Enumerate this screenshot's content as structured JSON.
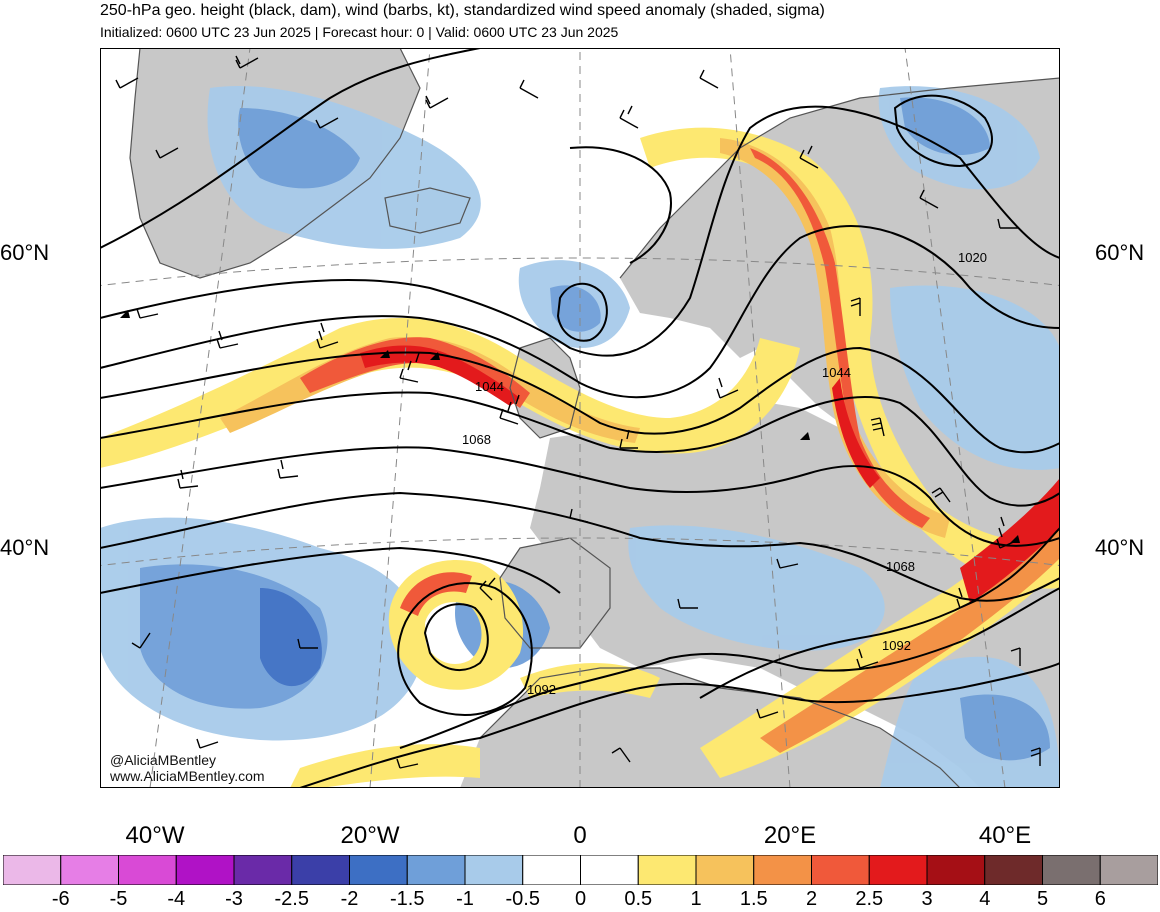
{
  "header": {
    "title": "250-hPa geo. height (black, dam), wind (barbs, kt), standardized wind speed anomaly (shaded, sigma)",
    "subtitle": "Initialized: 0600 UTC 23 Jun 2025 | Forecast hour: 0 | Valid: 0600 UTC 23 Jun 2025"
  },
  "map": {
    "lat_labels": [
      "60°N",
      "40°N"
    ],
    "lon_labels": [
      "40°W",
      "20°W",
      "0",
      "20°E",
      "40°E"
    ],
    "contour_labels": [
      "1020",
      "1044",
      "1044",
      "1068",
      "1068",
      "1092",
      "1092"
    ],
    "colors": {
      "land": "#c8c8c8",
      "ocean": "#ffffff",
      "contour": "#000000",
      "coastline": "#555555"
    }
  },
  "credit": {
    "handle": "@AliciaMBentley",
    "site": "www.AliciaMBentley.com"
  },
  "colorbar": {
    "labels": [
      "-6",
      "-5",
      "-4",
      "-3",
      "-2.5",
      "-2",
      "-1.5",
      "-1",
      "-0.5",
      "0",
      "0.5",
      "1",
      "1.5",
      "2",
      "2.5",
      "3",
      "4",
      "5",
      "6"
    ],
    "colors": [
      "#ebb8e8",
      "#e67ee6",
      "#d94ad6",
      "#b012c6",
      "#6a2aa8",
      "#3b3fa8",
      "#3d6fc4",
      "#6f9fd9",
      "#a8cbea",
      "#ffffff",
      "#ffffff",
      "#fde871",
      "#f6c25c",
      "#f39247",
      "#f0593a",
      "#e31a1c",
      "#a50f15",
      "#6e2a2a",
      "#7a6f6f",
      "#a89e9e"
    ]
  }
}
